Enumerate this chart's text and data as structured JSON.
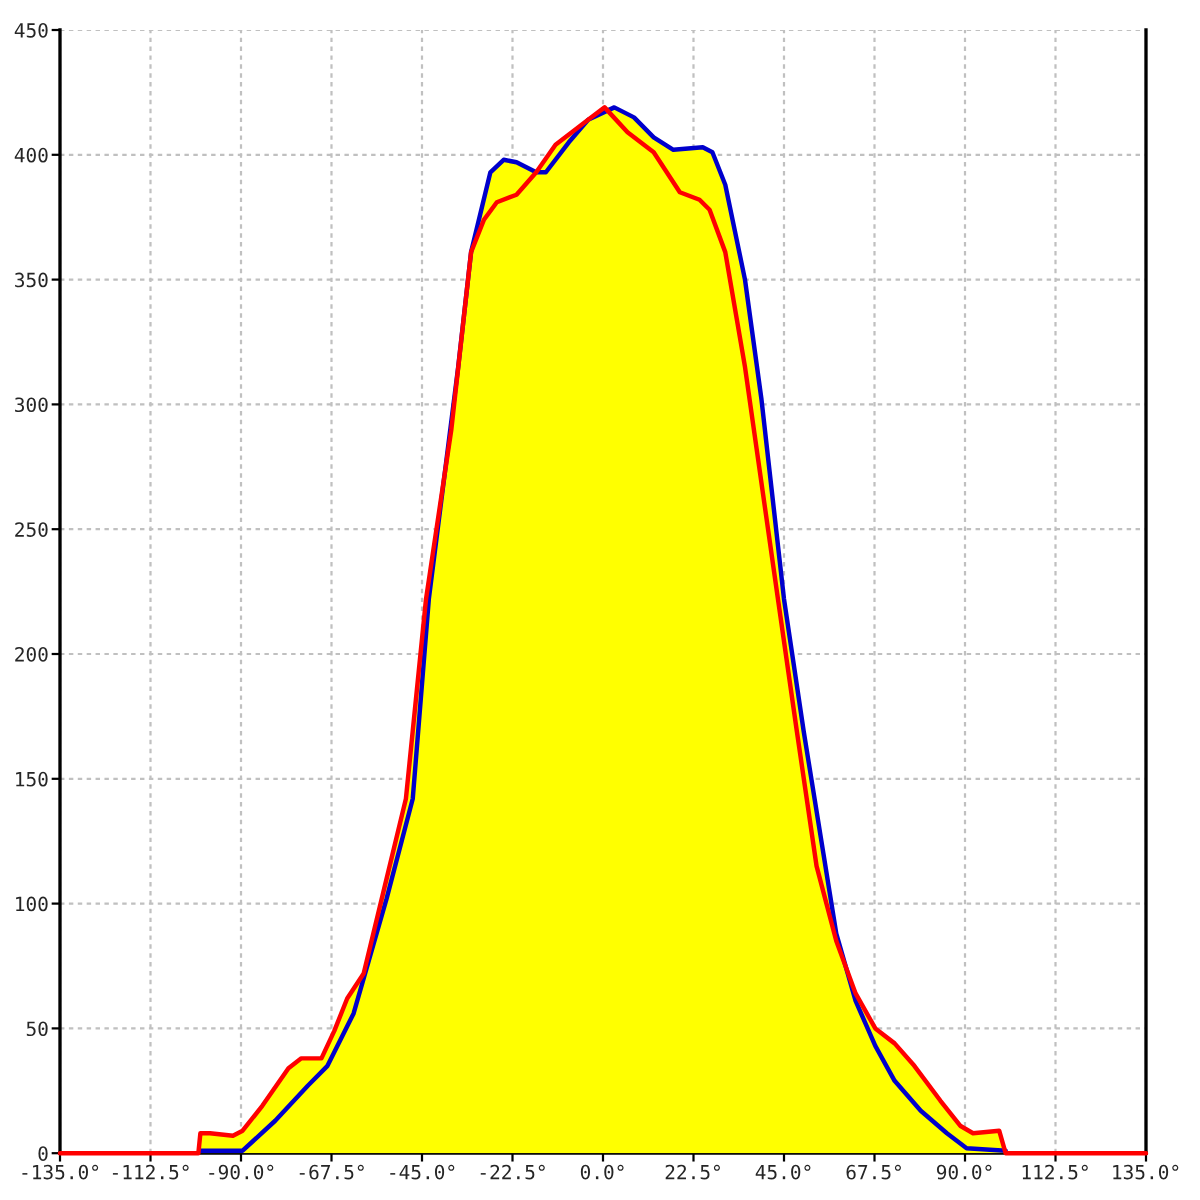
{
  "chart_data": {
    "type": "line",
    "xlim": [
      -135,
      135
    ],
    "xticks": [
      {
        "value": -135,
        "label": "-135.0°"
      },
      {
        "value": -112.5,
        "label": "-112.5°"
      },
      {
        "value": -90,
        "label": "-90.0°"
      },
      {
        "value": -67.5,
        "label": "-67.5°"
      },
      {
        "value": -45,
        "label": "-45.0°"
      },
      {
        "value": -22.5,
        "label": "-22.5°"
      },
      {
        "value": 0,
        "label": "0.0°"
      },
      {
        "value": 22.5,
        "label": "22.5°"
      },
      {
        "value": 45,
        "label": "45.0°"
      },
      {
        "value": 67.5,
        "label": "67.5°"
      },
      {
        "value": 90,
        "label": "90.0°"
      },
      {
        "value": 112.5,
        "label": "112.5°"
      },
      {
        "value": 135,
        "label": "135.0°"
      }
    ],
    "ylim": [
      0,
      450
    ],
    "yticks": [
      0,
      50,
      100,
      150,
      200,
      250,
      300,
      350,
      400,
      450
    ],
    "grid": true,
    "line_style": "solid",
    "marker": "none",
    "series": [
      {
        "type": "area",
        "color": "#ffff00",
        "x": [
          -100.6,
          -100.1,
          -97.7,
          -92,
          -89.6,
          -84.7,
          -78.2,
          -75,
          -70,
          -66.8,
          -63.6,
          -59.5,
          -53.8,
          -49,
          -44,
          -37.7,
          -32.8,
          -28,
          -24.7,
          -21.5,
          -16.6,
          -11.8,
          -3.7,
          0.4,
          2.8,
          7.7,
          12.6,
          17.5,
          24.8,
          27.2,
          30.4,
          35.3,
          39.4,
          45,
          49.9,
          54.8,
          58,
          62.8,
          67.7,
          72.5,
          77.4,
          83.9,
          88.8,
          92,
          98.5,
          100.1
        ],
        "values": [
          0,
          8,
          8,
          7,
          9,
          19,
          34,
          38,
          38,
          49,
          62,
          72,
          110,
          142,
          222,
          290,
          361,
          393,
          398,
          397,
          393,
          404,
          414,
          419,
          419,
          415,
          407,
          402,
          403,
          401,
          388,
          350,
          302,
          222,
          169,
          120,
          88,
          64,
          50,
          44,
          35,
          21,
          11,
          8,
          9,
          0
        ]
      },
      {
        "color": "#0000cc",
        "x": [
          -100.1,
          -89.6,
          -81.5,
          -73.4,
          -68.5,
          -62,
          -53.8,
          -47.3,
          -43.3,
          -36,
          -32.8,
          -28,
          -24.7,
          -21.5,
          -16.6,
          -14.2,
          -8.5,
          -3.7,
          2.8,
          7.7,
          12.6,
          17.5,
          24.8,
          27.2,
          30.4,
          35.3,
          39.4,
          45,
          49.9,
          54.8,
          58,
          62.8,
          67.7,
          72.5,
          79,
          85.5,
          90.4,
          100.1
        ],
        "values": [
          1,
          1,
          13,
          27,
          35,
          56,
          102,
          142,
          222,
          315,
          361,
          393,
          398,
          397,
          393,
          393,
          405,
          414,
          419,
          415,
          407,
          402,
          403,
          401,
          388,
          350,
          302,
          222,
          169,
          120,
          88,
          61,
          43,
          29,
          17,
          8,
          2,
          1
        ]
      },
      {
        "color": "#ff0000",
        "x": [
          -135,
          -100.6,
          -100.1,
          -97.7,
          -92,
          -89.6,
          -84.7,
          -78.2,
          -75,
          -70,
          -66.8,
          -63.6,
          -59.5,
          -53.8,
          -49,
          -44,
          -37.7,
          -32.8,
          -29.6,
          -26.4,
          -21.5,
          -16.6,
          -11.8,
          -3.7,
          0.4,
          6.1,
          12.6,
          19.1,
          24,
          26.5,
          30.4,
          35.3,
          43.5,
          48.2,
          53.1,
          58,
          62.8,
          67.7,
          72.5,
          77.4,
          83.9,
          88.8,
          92,
          98.5,
          100.1,
          135
        ],
        "values": [
          0,
          0,
          8,
          8,
          7,
          9,
          19,
          34,
          38,
          38,
          49,
          62,
          72,
          110,
          142,
          222,
          290,
          361,
          374,
          381,
          384,
          393,
          404,
          414,
          419,
          409,
          401,
          385,
          382,
          378,
          361,
          315,
          222,
          169,
          115,
          85,
          64,
          50,
          44,
          35,
          21,
          11,
          8,
          9,
          0,
          0
        ]
      }
    ]
  }
}
